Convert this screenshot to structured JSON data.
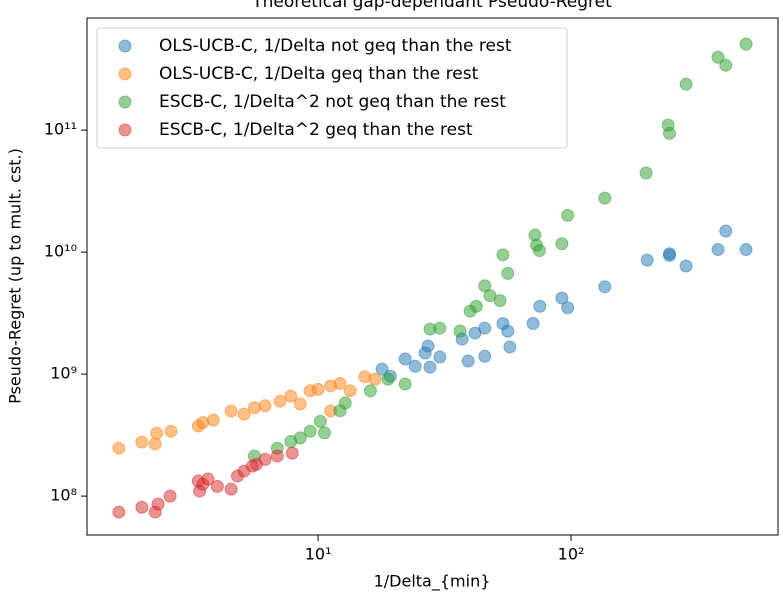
{
  "chart_data": {
    "type": "scatter",
    "title": "Theoretical gap-dependant Pseudo-Regret",
    "x_label": "1/Delta_{min}",
    "y_label": "Pseudo-Regret (up to mult. cst.)",
    "xscale": "log",
    "yscale": "log",
    "xlim": [
      1.22,
      658
    ],
    "ylim": [
      48000000,
      830000000000
    ],
    "xticks": [
      {
        "value": 10,
        "label": "10¹"
      },
      {
        "value": 100,
        "label": "10²"
      }
    ],
    "yticks": [
      {
        "value": 100000000,
        "label": "10⁸"
      },
      {
        "value": 1000000000,
        "label": "10⁹"
      },
      {
        "value": 10000000000,
        "label": "10¹⁰"
      },
      {
        "value": 100000000000,
        "label": "10¹¹"
      }
    ],
    "legend": "upper left",
    "alpha": 0.5,
    "series": [
      {
        "name": "OLS-UCB-C, 1/Delta not geq than the rest",
        "color": "#1f77b4",
        "x": [
          17.9,
          19.3,
          22.1,
          24.2,
          26.5,
          27.7,
          30.3,
          27.2,
          37.1,
          39.2,
          41.7,
          45.6,
          45.6,
          53.8,
          56.2,
          57.3,
          70.8,
          75.3,
          92,
          97,
          136,
          200,
          245,
          245,
          285,
          381,
          409,
          492
        ],
        "values": [
          1100000000,
          960000000,
          1330000000,
          1160000000,
          1490000000,
          1140000000,
          1380000000,
          1700000000,
          1940000000,
          1280000000,
          2170000000,
          2380000000,
          1400000000,
          2600000000,
          2250000000,
          1670000000,
          2600000000,
          3600000000,
          4200000000,
          3500000000,
          5200000000,
          8600000000,
          9700000000,
          9400000000,
          7700000000,
          10500000000,
          14900000000,
          10500000000
        ]
      },
      {
        "name": "OLS-UCB-C, 1/Delta geq than the rest",
        "color": "#ff7f0e",
        "x": [
          1.63,
          2.01,
          2.27,
          2.3,
          2.62,
          3.36,
          3.5,
          3.85,
          4.53,
          5.1,
          5.6,
          6.17,
          7.08,
          7.8,
          8.5,
          9.3,
          10,
          11.2,
          12.2,
          13.4,
          15.3,
          16.8,
          11.2
        ],
        "values": [
          247000000,
          277000000,
          268000000,
          328000000,
          340000000,
          375000000,
          400000000,
          420000000,
          497000000,
          470000000,
          530000000,
          550000000,
          600000000,
          660000000,
          570000000,
          730000000,
          750000000,
          800000000,
          840000000,
          730000000,
          950000000,
          910000000,
          500000000
        ]
      },
      {
        "name": "ESCB-C, 1/Delta^2 not geq than the rest",
        "color": "#2ca02c",
        "x": [
          5.6,
          6.9,
          7.8,
          8.5,
          9.3,
          10.2,
          10.6,
          12.2,
          12.8,
          16.1,
          18.9,
          22.1,
          27.7,
          30.3,
          36.4,
          39.9,
          42.2,
          45.6,
          47.8,
          52.4,
          53.8,
          56.2,
          72,
          73,
          75,
          92,
          97,
          136,
          198,
          242,
          245,
          285,
          381,
          409,
          492
        ],
        "values": [
          213000000,
          247000000,
          280000000,
          300000000,
          340000000,
          410000000,
          330000000,
          500000000,
          580000000,
          730000000,
          910000000,
          830000000,
          2340000000,
          2380000000,
          2250000000,
          3280000000,
          3600000000,
          5300000000,
          4400000000,
          4000000000,
          9500000000,
          6700000000,
          13800000000,
          11400000000,
          10300000000,
          11700000000,
          20000000000,
          27700000000,
          44500000000,
          110000000000,
          94000000000,
          238000000000,
          396000000000,
          340000000000,
          507000000000
        ]
      },
      {
        "name": "ESCB-C, 1/Delta^2 geq than the rest",
        "color": "#d62728",
        "x": [
          1.63,
          2.01,
          2.27,
          2.33,
          2.6,
          3.36,
          3.4,
          3.5,
          3.67,
          4.0,
          4.53,
          4.8,
          5.1,
          5.5,
          5.7,
          6.17,
          6.9,
          7.9
        ],
        "values": [
          74000000,
          81000000,
          74000000,
          86000000,
          100000000,
          133000000,
          110000000,
          125000000,
          138000000,
          120000000,
          114000000,
          146000000,
          160000000,
          176000000,
          182000000,
          200000000,
          213000000,
          225000000
        ]
      }
    ]
  }
}
